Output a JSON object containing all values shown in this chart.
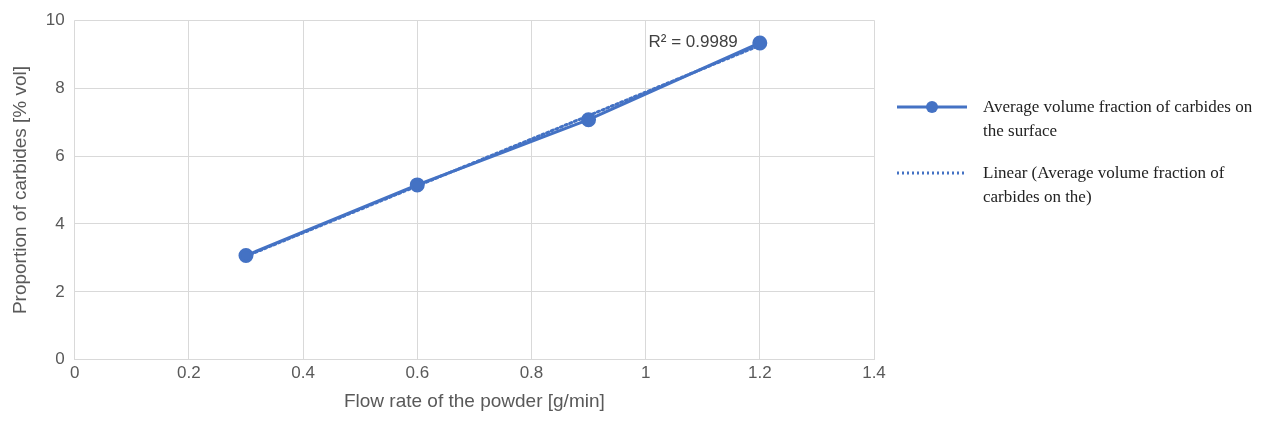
{
  "chart_data": {
    "type": "line",
    "xlabel": "Flow rate of the powder [g/min]",
    "ylabel": "Proportion of carbides [% vol]",
    "x": [
      0.3,
      0.6,
      0.9,
      1.2
    ],
    "series": [
      {
        "name": "Average volume fraction of carbides on the surface",
        "color": "#4472c4",
        "values": [
          3.07,
          5.15,
          7.07,
          9.33
        ],
        "marker": "circle",
        "line_style": "solid"
      },
      {
        "name": "Linear (Average volume fraction of carbides on the)",
        "type": "line",
        "color": "#4472c4",
        "x": [
          0.3,
          1.2
        ],
        "values": [
          3.05,
          9.26
        ],
        "marker": "none",
        "line_style": "dotted"
      }
    ],
    "annotations": [
      "R² = 0.9989"
    ],
    "xlim": [
      0,
      1.4
    ],
    "xticks": [
      0,
      0.2,
      0.4,
      0.6,
      0.8,
      1,
      1.2,
      1.4
    ],
    "ylim": [
      0,
      10
    ],
    "yticks": [
      0,
      2,
      4,
      6,
      8,
      10
    ],
    "grid": true,
    "legend": "right"
  }
}
